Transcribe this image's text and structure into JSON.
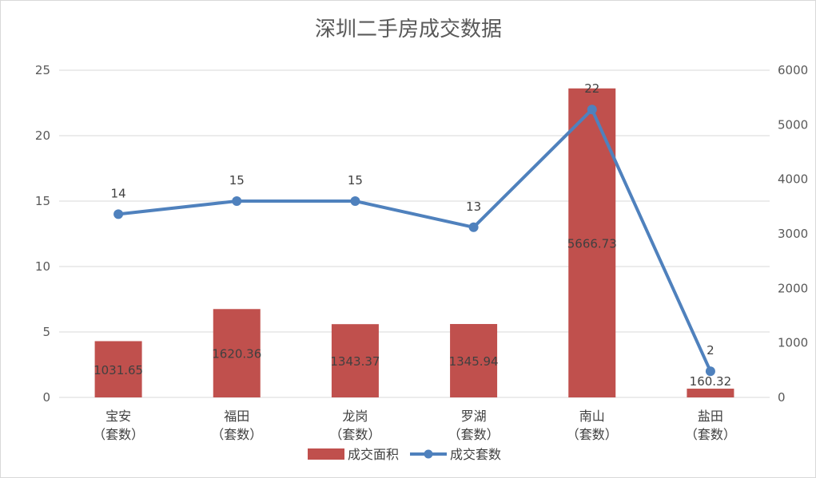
{
  "chart_data": {
    "type": "bar",
    "title": "深圳二手房成交数据",
    "categories": [
      [
        "宝安",
        "（套数）"
      ],
      [
        "福田",
        "（套数）"
      ],
      [
        "龙岗",
        "（套数）"
      ],
      [
        "罗湖",
        "（套数）"
      ],
      [
        "南山",
        "（套数）"
      ],
      [
        "盐田",
        "（套数）"
      ]
    ],
    "left_axis": {
      "min": 0,
      "max": 25,
      "ticks": [
        0,
        5,
        10,
        15,
        20,
        25
      ]
    },
    "right_axis": {
      "min": 0,
      "max": 6000,
      "ticks": [
        0,
        1000,
        2000,
        3000,
        4000,
        5000,
        6000
      ]
    },
    "grid": true,
    "legend_position": "bottom",
    "series": [
      {
        "name": "成交面积",
        "type": "bar",
        "axis": "right",
        "color": "#c0504d",
        "values": [
          1031.65,
          1620.36,
          1343.37,
          1345.94,
          5666.73,
          160.32
        ],
        "labels": [
          "1031.65",
          "1620.36",
          "1343.37",
          "1345.94",
          "5666.73",
          "160.32"
        ]
      },
      {
        "name": "成交套数",
        "type": "line",
        "axis": "left",
        "color": "#4f81bd",
        "values": [
          14,
          15,
          15,
          13,
          22,
          2
        ],
        "labels": [
          "14",
          "15",
          "15",
          "13",
          "22",
          "2"
        ]
      }
    ]
  }
}
